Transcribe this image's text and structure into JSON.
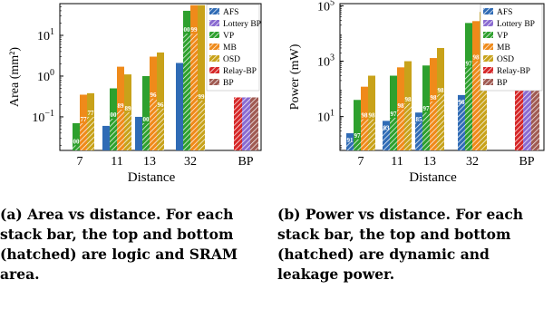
{
  "chart_data": [
    {
      "type": "bar",
      "stacked": true,
      "ylabel": "Area (mm²)",
      "xlabel": "Distance",
      "y_scale": "log",
      "ylim": [
        0.015,
        60
      ],
      "y_ticks": [
        {
          "v": 0.1,
          "base": "10",
          "exp": "−1"
        },
        {
          "v": 1,
          "base": "10",
          "exp": "0"
        },
        {
          "v": 10,
          "base": "10",
          "exp": "1"
        }
      ],
      "categories": [
        "7",
        "11",
        "13",
        "32",
        "BP"
      ],
      "series": [
        {
          "name": "AFS",
          "color": "#2f6bb5",
          "values": [
            null,
            0.06,
            0.1,
            2.1,
            null
          ]
        },
        {
          "name": "Lottery BP",
          "color": "#8a6bd1",
          "values": [
            null,
            null,
            null,
            null,
            0.3
          ]
        },
        {
          "name": "VP",
          "color": "#2ea02e",
          "values": [
            0.07,
            0.5,
            1.0,
            40,
            null
          ]
        },
        {
          "name": "MB",
          "color": "#ef8a1a",
          "values": [
            0.35,
            1.7,
            3.0,
            55,
            null
          ]
        },
        {
          "name": "OSD",
          "color": "#c8a21a",
          "values": [
            0.38,
            1.1,
            3.8,
            55,
            null
          ]
        },
        {
          "name": "Relay-BP",
          "color": "#d62728",
          "values": [
            null,
            null,
            null,
            null,
            0.3
          ]
        },
        {
          "name": "BP",
          "color": "#a05a52",
          "values": [
            null,
            null,
            null,
            null,
            0.3
          ]
        }
      ],
      "hatched_bottom": {
        "VP": [
          0.02,
          0.09,
          0.07,
          11
        ],
        "MB": [
          0.07,
          0.15,
          0.28,
          11
        ],
        "OSD": [
          0.1,
          0.13,
          0.16,
          0.25
        ]
      },
      "bar_labels": {
        "VP": [
          "00",
          "00",
          "00",
          "00"
        ],
        "MB": [
          "77",
          "89",
          "96",
          "99"
        ],
        "OSD": [
          "77",
          "89",
          "96",
          "99"
        ]
      },
      "legend": [
        "AFS",
        "Lottery BP",
        "VP",
        "MB",
        "OSD",
        "Relay-BP",
        "BP"
      ]
    },
    {
      "type": "bar",
      "stacked": true,
      "ylabel": "Power (mW)",
      "xlabel": "Distance",
      "y_scale": "log",
      "ylim": [
        0.6,
        120000
      ],
      "y_ticks": [
        {
          "v": 10,
          "base": "10",
          "exp": "1"
        },
        {
          "v": 1000,
          "base": "10",
          "exp": "3"
        },
        {
          "v": 100000,
          "base": "10",
          "exp": "5"
        }
      ],
      "categories": [
        "7",
        "11",
        "13",
        "32",
        "BP"
      ],
      "series": [
        {
          "name": "AFS",
          "color": "#2f6bb5",
          "values": [
            2.5,
            7,
            14,
            60,
            null
          ]
        },
        {
          "name": "Lottery BP",
          "color": "#8a6bd1",
          "values": [
            null,
            null,
            null,
            null,
            280
          ]
        },
        {
          "name": "VP",
          "color": "#2ea02e",
          "values": [
            40,
            300,
            700,
            24000,
            null
          ]
        },
        {
          "name": "MB",
          "color": "#ef8a1a",
          "values": [
            120,
            600,
            1300,
            28000,
            null
          ]
        },
        {
          "name": "OSD",
          "color": "#c8a21a",
          "values": [
            300,
            1000,
            3000,
            60000,
            null
          ]
        },
        {
          "name": "Relay-BP",
          "color": "#d62728",
          "values": [
            null,
            null,
            null,
            null,
            280
          ]
        },
        {
          "name": "BP",
          "color": "#a05a52",
          "values": [
            null,
            null,
            null,
            null,
            280
          ]
        }
      ],
      "hatched_bottom": {
        "AFS": [
          1.2,
          4.5,
          6,
          40
        ],
        "VP": [
          1.5,
          9,
          14,
          600
        ],
        "MB": [
          8,
          18,
          35,
          1000
        ],
        "OSD": [
          8,
          30,
          65,
          1100
        ]
      },
      "bar_labels": {
        "AFS": [
          "91",
          "83",
          "85",
          "96"
        ],
        "VP": [
          "97",
          "97",
          "97",
          "97"
        ],
        "MB": [
          "98",
          "98",
          "98",
          "98"
        ],
        "OSD": [
          "98",
          "98",
          "98",
          "98"
        ]
      },
      "legend": [
        "AFS",
        "Lottery BP",
        "VP",
        "MB",
        "OSD",
        "Relay-BP",
        "BP"
      ]
    }
  ],
  "captions": {
    "a_label": "(a)",
    "a_text": "Area vs distance. For each stack bar, the top and bottom (hatched) are logic and SRAM area.",
    "b_label": "(b)",
    "b_text": "Power vs distance. For each stack bar, the top and bottom (hatched) are dynamic and leakage power."
  }
}
